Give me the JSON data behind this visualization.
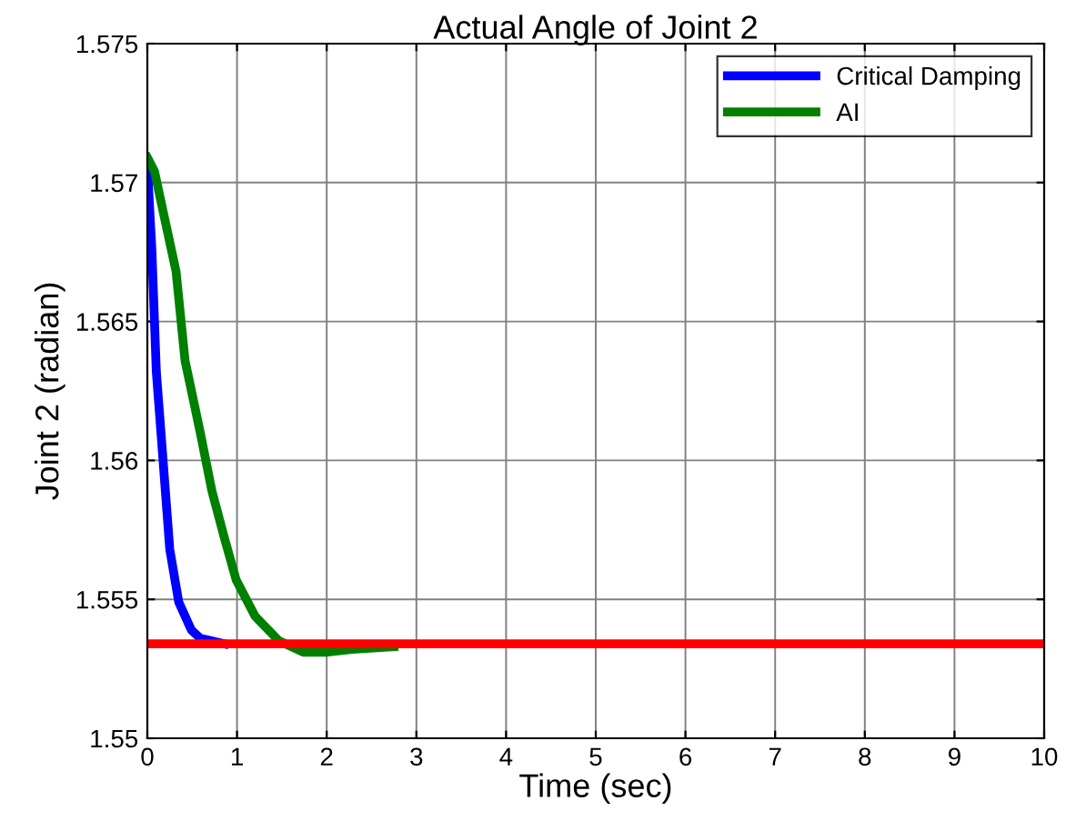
{
  "chart_data": {
    "type": "line",
    "title": "Actual Angle of Joint 2",
    "xlabel": "Time (sec)",
    "ylabel": "Joint 2 (radian)",
    "xlim": [
      0,
      10
    ],
    "xticks": [
      0,
      1,
      2,
      3,
      4,
      5,
      6,
      7,
      8,
      9,
      10
    ],
    "ylim": [
      1.55,
      1.575
    ],
    "yticks": [
      1.55,
      1.555,
      1.56,
      1.565,
      1.57,
      1.575
    ],
    "grid": true,
    "legend": "top right",
    "series": [
      {
        "name": "Critical Damping",
        "color": "#0000ff",
        "x": [
          0,
          0.05,
          0.1,
          0.18,
          0.25,
          0.35,
          0.49,
          0.59,
          0.86
        ],
        "values": [
          1.5706,
          1.5676,
          1.5632,
          1.5598,
          1.5568,
          1.5549,
          1.5539,
          1.5536,
          1.5534
        ]
      },
      {
        "name": "AI",
        "color": "#008000",
        "x": [
          0,
          0.08,
          0.18,
          0.32,
          0.42,
          0.59,
          0.72,
          0.86,
          0.99,
          1.2,
          1.47,
          1.74,
          2.01,
          2.28,
          2.75
        ],
        "values": [
          1.5709,
          1.5704,
          1.5689,
          1.5668,
          1.5636,
          1.561,
          1.5589,
          1.5572,
          1.5557,
          1.5544,
          1.5535,
          1.5531,
          1.5531,
          1.5532,
          1.5533
        ]
      },
      {
        "color": "#ff0000",
        "x": [
          0,
          10
        ],
        "values": [
          1.5534,
          1.5534
        ]
      }
    ]
  }
}
